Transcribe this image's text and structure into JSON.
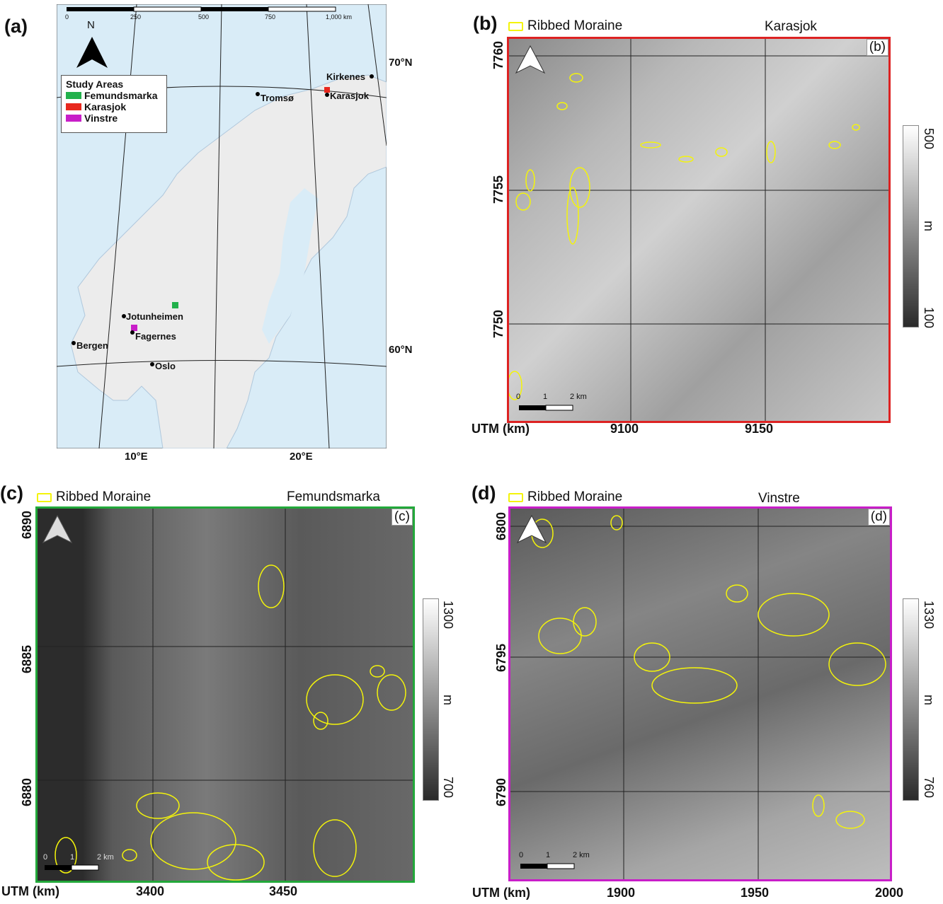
{
  "panel_a": {
    "letter": "(a)",
    "scalebar_labels": [
      "0",
      "250",
      "500",
      "750",
      "1,000 km"
    ],
    "north_label": "N",
    "legend_title": "Study Areas",
    "legend_items": [
      {
        "label": "Femundsmarka",
        "color": "#22b14c"
      },
      {
        "label": "Karasjok",
        "color": "#e8281e"
      },
      {
        "label": "Vinstre",
        "color": "#c81ec8"
      }
    ],
    "cities": [
      "Kirkenes",
      "Tromsø",
      "Karasjok",
      "Jotunheimen",
      "Fagernes",
      "Bergen",
      "Oslo"
    ],
    "lat_labels": [
      "70°N",
      "60°N"
    ],
    "lon_labels": [
      "10°E",
      "20°E"
    ]
  },
  "panel_b": {
    "letter": "(b)",
    "legend_label": "Ribbed Moraine",
    "area_name": "Karasjok",
    "corner_tag": "(b)",
    "frame_color": "#dd2222",
    "utm_label": "UTM (km)",
    "x_ticks": [
      "9100",
      "9150"
    ],
    "y_ticks": [
      "7760",
      "7755",
      "7750"
    ],
    "colorbar": {
      "max": "500",
      "unit": "m",
      "min": "100"
    },
    "scale_labels": [
      "0",
      "1",
      "2 km"
    ]
  },
  "panel_c": {
    "letter": "(c)",
    "legend_label": "Ribbed Moraine",
    "area_name": "Femundsmarka",
    "corner_tag": "(c)",
    "frame_color": "#22a83a",
    "utm_label": "UTM (km)",
    "x_ticks": [
      "3400",
      "3450"
    ],
    "y_ticks": [
      "6890",
      "6885",
      "6880"
    ],
    "colorbar": {
      "max": "1300",
      "unit": "m",
      "min": "700"
    },
    "scale_labels": [
      "0",
      "1",
      "2 km"
    ]
  },
  "panel_d": {
    "letter": "(d)",
    "legend_label": "Ribbed Moraine",
    "area_name": "Vinstre",
    "corner_tag": "(d)",
    "frame_color": "#c81ec8",
    "utm_label": "UTM (km)",
    "x_ticks": [
      "1900",
      "1950",
      "2000"
    ],
    "y_ticks": [
      "6800",
      "6795",
      "6790"
    ],
    "colorbar": {
      "max": "1330",
      "unit": "m",
      "min": "760"
    },
    "scale_labels": [
      "0",
      "1",
      "2 km"
    ]
  },
  "colors": {
    "moraine": "#f4f40a",
    "sea": "#d9ecf7",
    "land": "#ececec"
  }
}
